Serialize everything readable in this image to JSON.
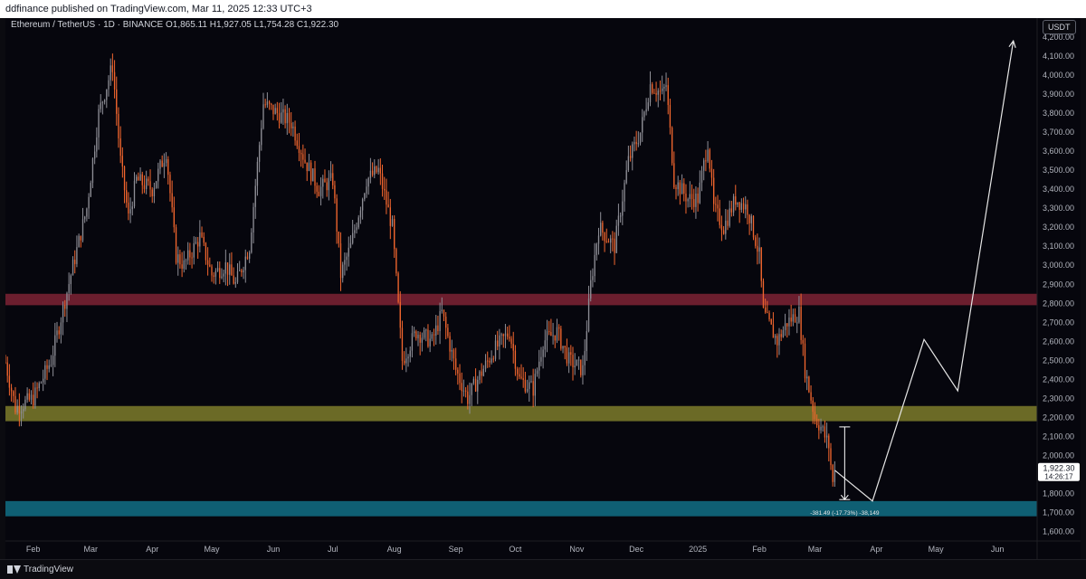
{
  "header": {
    "published": "ddfinance published on TradingView.com, Mar 11, 2025 12:33 UTC+3"
  },
  "symbol": {
    "title": "Ethereum / TetherUS · 1D · BINANCE",
    "ohlc": "O1,865.11 H1,927.05 L1,754.28 C1,922.30"
  },
  "currency": "USDT",
  "price_label": {
    "value": "1,922.30",
    "countdown": "14:26:17"
  },
  "measure_label": "-381.49 (-17.73%) -38,149",
  "footer": {
    "brand": "TradingView"
  },
  "colors": {
    "up": "#8e8e96",
    "down": "#f2662e",
    "resistance_zone": "#6b1e2e",
    "support_zone": "#6b6a26",
    "target_zone": "#0f5f73",
    "projection": "#e6e6e6"
  },
  "chart_data": {
    "type": "candlestick",
    "title": "Ethereum / TetherUS · 1D · BINANCE",
    "x_ticks": [
      "Feb",
      "Mar",
      "Apr",
      "May",
      "Jun",
      "Jul",
      "Aug",
      "Sep",
      "Oct",
      "Nov",
      "Dec",
      "2025",
      "Feb",
      "Mar",
      "Apr",
      "May",
      "Jun"
    ],
    "x_tick_dates": [
      "2024-02-01",
      "2024-03-01",
      "2024-04-01",
      "2024-05-01",
      "2024-06-01",
      "2024-07-01",
      "2024-08-01",
      "2024-09-01",
      "2024-10-01",
      "2024-11-01",
      "2024-12-01",
      "2025-01-01",
      "2025-02-01",
      "2025-03-01",
      "2025-04-01",
      "2025-05-01",
      "2025-06-01"
    ],
    "y_ticks": [
      "4,200.00",
      "4,100.00",
      "4,000.00",
      "3,900.00",
      "3,800.00",
      "3,700.00",
      "3,600.00",
      "3,500.00",
      "3,400.00",
      "3,300.00",
      "3,200.00",
      "3,100.00",
      "3,000.00",
      "2,900.00",
      "2,800.00",
      "2,700.00",
      "2,600.00",
      "2,500.00",
      "2,400.00",
      "2,300.00",
      "2,200.00",
      "2,100.00",
      "2,000.00",
      "1,900.00",
      "1,800.00",
      "1,700.00",
      "1,600.00"
    ],
    "y_tick_values": [
      4200,
      4100,
      4000,
      3900,
      3800,
      3700,
      3600,
      3500,
      3400,
      3300,
      3200,
      3100,
      3000,
      2900,
      2800,
      2700,
      2600,
      2500,
      2400,
      2300,
      2200,
      2100,
      2000,
      1900,
      1800,
      1700,
      1600
    ],
    "ylim": [
      1550,
      4300
    ],
    "xlim": [
      "2024-01-18",
      "2025-06-21"
    ],
    "price_path": [
      [
        "2024-01-18",
        2490
      ],
      [
        "2024-01-23",
        2250
      ],
      [
        "2024-02-01",
        2300
      ],
      [
        "2024-02-10",
        2500
      ],
      [
        "2024-02-20",
        2950
      ],
      [
        "2024-02-28",
        3300
      ],
      [
        "2024-03-05",
        3800
      ],
      [
        "2024-03-12",
        4050
      ],
      [
        "2024-03-16",
        3550
      ],
      [
        "2024-03-20",
        3250
      ],
      [
        "2024-03-24",
        3450
      ],
      [
        "2024-04-01",
        3400
      ],
      [
        "2024-04-08",
        3600
      ],
      [
        "2024-04-13",
        3050
      ],
      [
        "2024-04-17",
        3000
      ],
      [
        "2024-04-25",
        3150
      ],
      [
        "2024-05-01",
        2950
      ],
      [
        "2024-05-08",
        3000
      ],
      [
        "2024-05-13",
        2900
      ],
      [
        "2024-05-20",
        3100
      ],
      [
        "2024-05-27",
        3850
      ],
      [
        "2024-06-03",
        3800
      ],
      [
        "2024-06-10",
        3750
      ],
      [
        "2024-06-17",
        3550
      ],
      [
        "2024-06-24",
        3400
      ],
      [
        "2024-07-01",
        3450
      ],
      [
        "2024-07-05",
        2950
      ],
      [
        "2024-07-10",
        3100
      ],
      [
        "2024-07-18",
        3450
      ],
      [
        "2024-07-24",
        3500
      ],
      [
        "2024-07-31",
        3200
      ],
      [
        "2024-08-05",
        2500
      ],
      [
        "2024-08-12",
        2650
      ],
      [
        "2024-08-20",
        2600
      ],
      [
        "2024-08-25",
        2750
      ],
      [
        "2024-09-01",
        2450
      ],
      [
        "2024-09-07",
        2300
      ],
      [
        "2024-09-12",
        2400
      ],
      [
        "2024-09-20",
        2550
      ],
      [
        "2024-09-28",
        2650
      ],
      [
        "2024-10-03",
        2400
      ],
      [
        "2024-10-10",
        2350
      ],
      [
        "2024-10-15",
        2600
      ],
      [
        "2024-10-22",
        2650
      ],
      [
        "2024-10-28",
        2500
      ],
      [
        "2024-11-04",
        2450
      ],
      [
        "2024-11-08",
        2900
      ],
      [
        "2024-11-12",
        3200
      ],
      [
        "2024-11-20",
        3100
      ],
      [
        "2024-11-27",
        3550
      ],
      [
        "2024-12-03",
        3700
      ],
      [
        "2024-12-08",
        3950
      ],
      [
        "2024-12-14",
        3900
      ],
      [
        "2024-12-16",
        3950
      ],
      [
        "2024-12-20",
        3450
      ],
      [
        "2024-12-27",
        3350
      ],
      [
        "2025-01-01",
        3350
      ],
      [
        "2025-01-06",
        3650
      ],
      [
        "2025-01-09",
        3300
      ],
      [
        "2025-01-14",
        3200
      ],
      [
        "2025-01-20",
        3350
      ],
      [
        "2025-01-26",
        3300
      ],
      [
        "2025-02-01",
        3050
      ],
      [
        "2025-02-03",
        2750
      ],
      [
        "2025-02-10",
        2600
      ],
      [
        "2025-02-15",
        2700
      ],
      [
        "2025-02-21",
        2750
      ],
      [
        "2025-02-24",
        2450
      ],
      [
        "2025-02-26",
        2350
      ],
      [
        "2025-03-01",
        2200
      ],
      [
        "2025-03-04",
        2150
      ],
      [
        "2025-03-08",
        2050
      ],
      [
        "2025-03-10",
        1850
      ],
      [
        "2025-03-11",
        1922
      ]
    ],
    "zones": [
      {
        "from": 2790,
        "to": 2850
      },
      {
        "from": 2180,
        "to": 2260
      },
      {
        "from": 1680,
        "to": 1760
      }
    ],
    "projection": [
      [
        "2025-03-11",
        1922
      ],
      [
        "2025-03-30",
        1760
      ],
      [
        "2025-04-25",
        2610
      ],
      [
        "2025-05-12",
        2340
      ],
      [
        "2025-06-09",
        4180
      ]
    ],
    "measure": {
      "date": "2025-03-16",
      "from": 2150,
      "to": 1768
    },
    "last_price": 1922.3
  }
}
